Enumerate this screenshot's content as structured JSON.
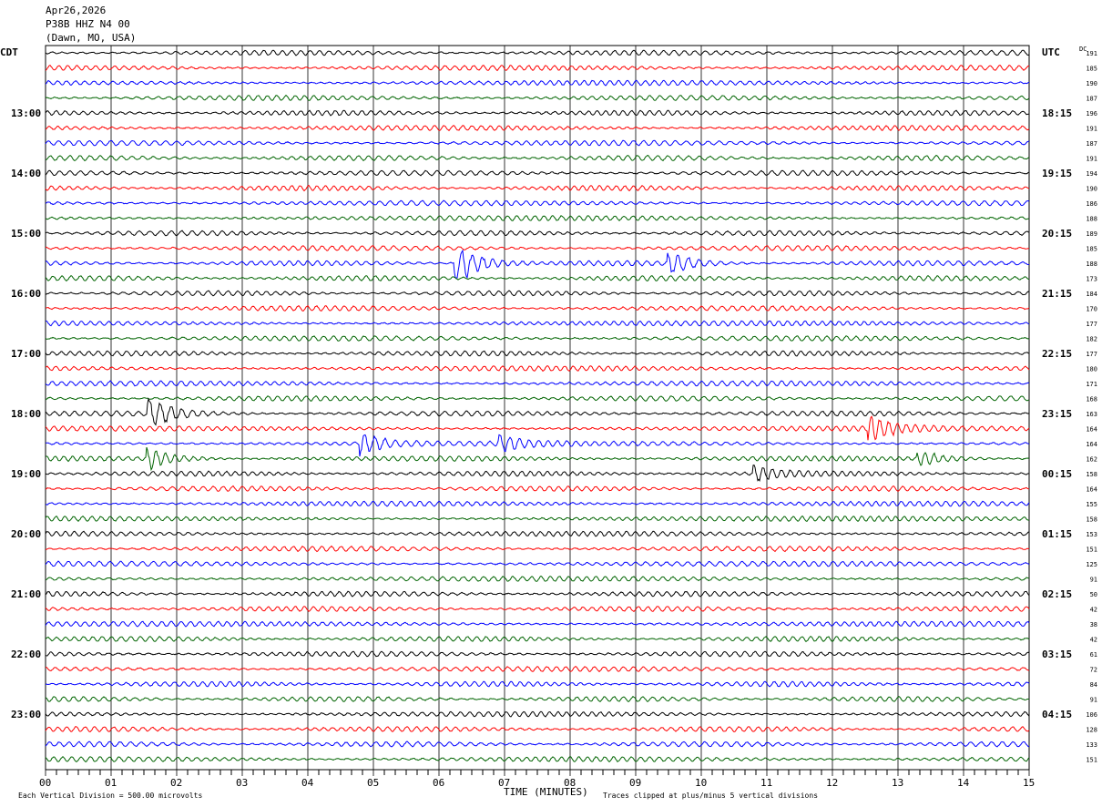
{
  "header": {
    "date": "Apr26,2026",
    "station": "P38B HHZ N4 00",
    "location": "(Dawn, MO, USA)"
  },
  "chart_data": {
    "type": "line",
    "title": "P38B HHZ N4 00 helicorder",
    "xlabel": "TIME (MINUTES)",
    "x_ticks": [
      "00",
      "01",
      "02",
      "03",
      "04",
      "05",
      "06",
      "07",
      "08",
      "09",
      "10",
      "11",
      "12",
      "13",
      "14",
      "15"
    ],
    "xlim": [
      0,
      15
    ],
    "left_axis_label": "CDT",
    "right_axis_label": "UTC",
    "dc_label": "DC",
    "left_time_labels": [
      "13:00",
      "14:00",
      "15:00",
      "16:00",
      "17:00",
      "18:00",
      "19:00",
      "20:00",
      "21:00",
      "22:00",
      "23:00"
    ],
    "right_time_labels": [
      "18:15",
      "19:15",
      "20:15",
      "21:15",
      "22:15",
      "23:15",
      "00:15",
      "01:15",
      "02:15",
      "03:15",
      "04:15"
    ],
    "trace_colors": [
      "#000000",
      "#ff0000",
      "#0000ff",
      "#006400"
    ],
    "dc_offsets": [
      191,
      185,
      190,
      187,
      196,
      191,
      187,
      191,
      194,
      190,
      186,
      188,
      189,
      185,
      188,
      173,
      184,
      170,
      177,
      182,
      177,
      180,
      171,
      168,
      163,
      164,
      164,
      162,
      158,
      164,
      155,
      158,
      153,
      151,
      125,
      91,
      50,
      42,
      38,
      42,
      61,
      72,
      84,
      91,
      106,
      128,
      133,
      151
    ],
    "events": [
      {
        "trace": 14,
        "minute": 6.25,
        "amp": 4
      },
      {
        "trace": 14,
        "minute": 9.5,
        "amp": 2
      },
      {
        "trace": 24,
        "minute": 1.55,
        "amp": 3
      },
      {
        "trace": 25,
        "minute": 12.55,
        "amp": 2.5
      },
      {
        "trace": 26,
        "minute": 4.8,
        "amp": 2
      },
      {
        "trace": 26,
        "minute": 6.9,
        "amp": 1.5
      },
      {
        "trace": 27,
        "minute": 1.55,
        "amp": 2
      },
      {
        "trace": 27,
        "minute": 13.3,
        "amp": 1.5
      },
      {
        "trace": 28,
        "minute": 10.8,
        "amp": 1.5
      }
    ],
    "scale_note": "Each Vertical Division =  500.00 microvolts",
    "clip_note": "Traces clipped at plus/minus 5 vertical divisions"
  }
}
